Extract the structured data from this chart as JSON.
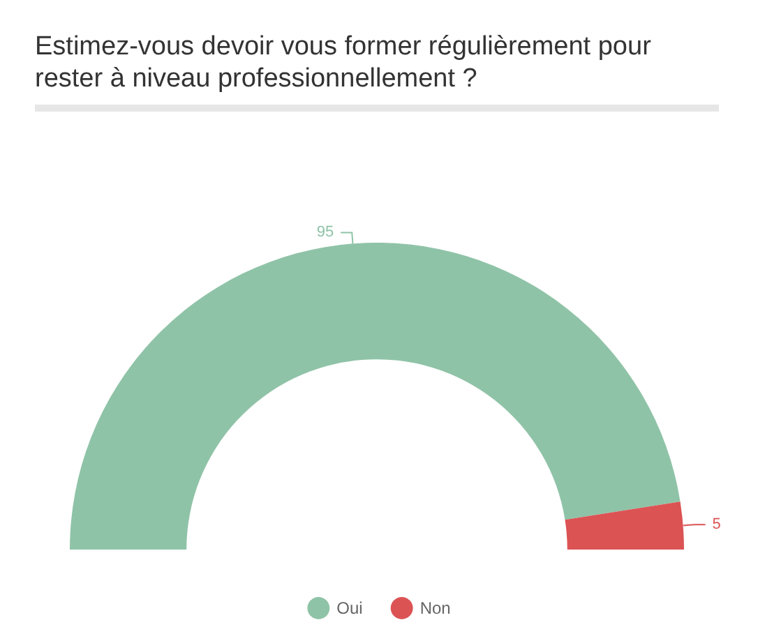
{
  "chart_data": {
    "type": "donut",
    "title": "Estimez-vous devoir vous former régulièrement pour rester à niveau professionnellement ?",
    "categories": [
      "Oui",
      "Non"
    ],
    "values": [
      95,
      5
    ],
    "colors": [
      "#8fc3a7",
      "#dc5354"
    ],
    "data_labels": true,
    "legend": "bottom"
  }
}
